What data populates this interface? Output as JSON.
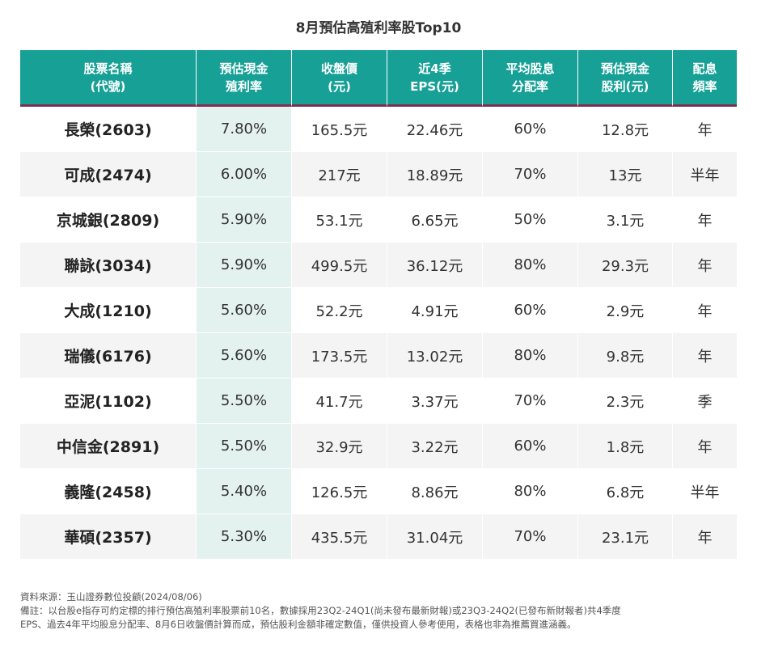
{
  "title": "8月預估高殖利率股Top10",
  "table": {
    "headers": [
      [
        "股票名稱",
        "(代號)"
      ],
      [
        "預估現金",
        "殖利率"
      ],
      [
        "收盤價",
        "(元)"
      ],
      [
        "近4季",
        "EPS(元)"
      ],
      [
        "平均股息",
        "分配率"
      ],
      [
        "預估現金",
        "股利(元)"
      ],
      [
        "配息",
        "頻率"
      ]
    ],
    "rows": [
      [
        "長榮(2603)",
        "7.80%",
        "165.5元",
        "22.46元",
        "60%",
        "12.8元",
        "年"
      ],
      [
        "可成(2474)",
        "6.00%",
        "217元",
        "18.89元",
        "70%",
        "13元",
        "半年"
      ],
      [
        "京城銀(2809)",
        "5.90%",
        "53.1元",
        "6.65元",
        "50%",
        "3.1元",
        "年"
      ],
      [
        "聯詠(3034)",
        "5.90%",
        "499.5元",
        "36.12元",
        "80%",
        "29.3元",
        "年"
      ],
      [
        "大成(1210)",
        "5.60%",
        "52.2元",
        "4.91元",
        "60%",
        "2.9元",
        "年"
      ],
      [
        "瑞儀(6176)",
        "5.60%",
        "173.5元",
        "13.02元",
        "80%",
        "9.8元",
        "年"
      ],
      [
        "亞泥(1102)",
        "5.50%",
        "41.7元",
        "3.37元",
        "70%",
        "2.3元",
        "季"
      ],
      [
        "中信金(2891)",
        "5.50%",
        "32.9元",
        "3.22元",
        "60%",
        "1.8元",
        "年"
      ],
      [
        "義隆(2458)",
        "5.40%",
        "126.5元",
        "8.86元",
        "80%",
        "6.8元",
        "半年"
      ],
      [
        "華碩(2357)",
        "5.30%",
        "435.5元",
        "31.04元",
        "70%",
        "23.1元",
        "年"
      ]
    ]
  },
  "notes": {
    "source": "資料來源：玉山證券數位投顧(2024/08/06)",
    "remark_line1": "備註：以台股e指存可約定標的排行預估高殖利率股票前10名，數據採用23Q2-24Q1(尚未發布最新財報)或23Q3-24Q2(已發布新財報者)共4季度",
    "remark_line2": "EPS、過去4年平均股息分配率、8月6日收盤價計算而成，預估股利金額非確定數值，僅供投資人參考使用，表格也非為推薦買進涵義。"
  },
  "colors": {
    "header_bg": "#16a096",
    "header_underline": "#7d2f52",
    "highlight_column": "#e3f1ef",
    "stripe": "#f4f4f4"
  }
}
